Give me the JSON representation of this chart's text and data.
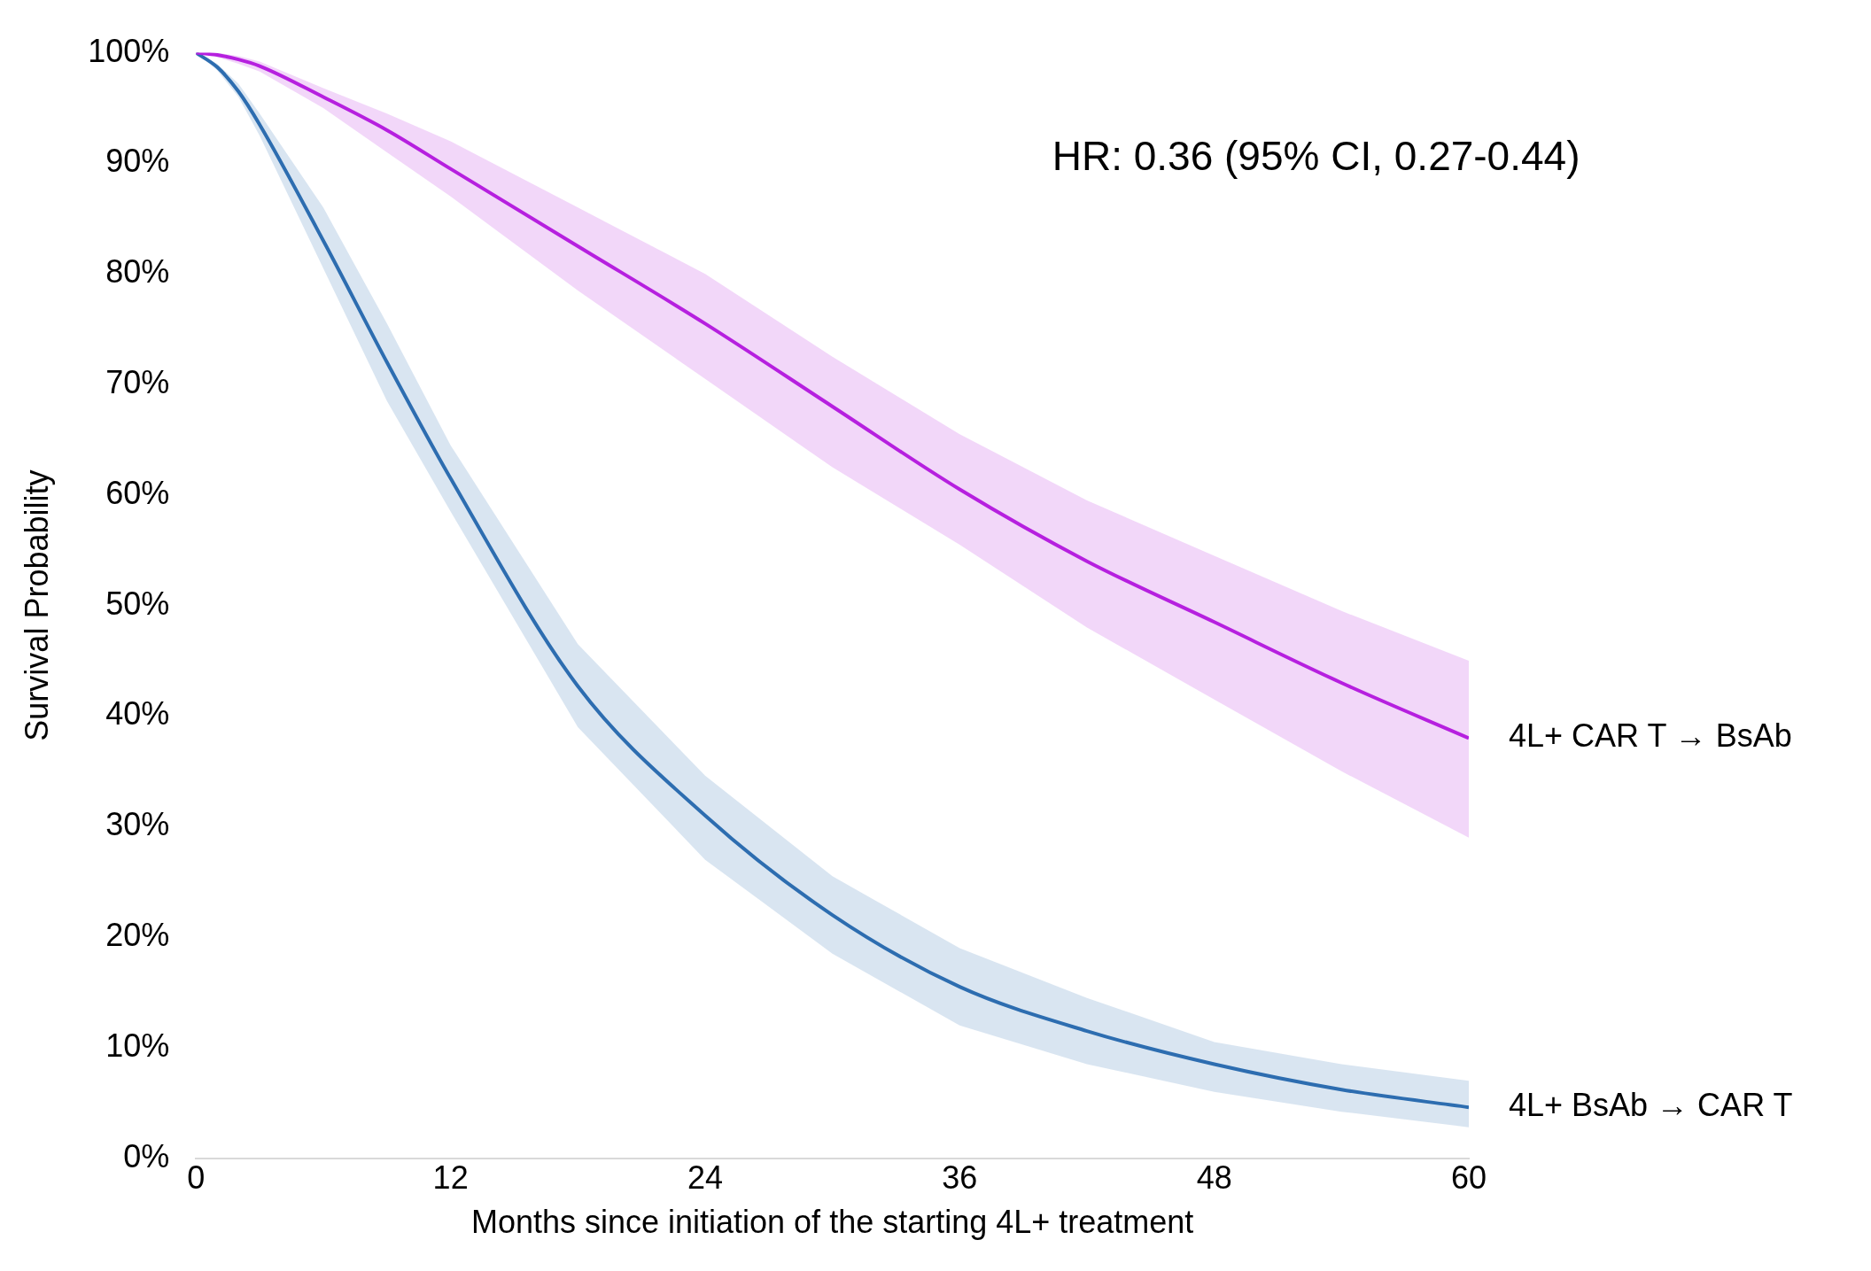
{
  "chart_data": {
    "type": "line",
    "xlabel": "Months since initiation of the starting 4L+ treatment",
    "ylabel": "Survival Probability",
    "annotations": [
      "HR: 0.36 (95% CI, 0.27-0.44)"
    ],
    "x": [
      0,
      1,
      2,
      3,
      6,
      9,
      12,
      18,
      24,
      30,
      36,
      42,
      48,
      54,
      60
    ],
    "series": [
      {
        "name": "4L+ CAR T → BsAb",
        "color": "#b620e0",
        "values": [
          100,
          99.8,
          99.4,
          98.8,
          96,
          93,
          89.5,
          82.5,
          75.5,
          68,
          60.5,
          54,
          48.5,
          43,
          38
        ],
        "lower": [
          100,
          99.6,
          99,
          98.3,
          95,
          91,
          87,
          78.5,
          70.5,
          62.5,
          55.5,
          48,
          41.5,
          35,
          29
        ],
        "upper": [
          100,
          100,
          99.7,
          99.2,
          96.8,
          94.5,
          92,
          86,
          80,
          72.5,
          65.5,
          59.5,
          54.5,
          49.5,
          45
        ]
      },
      {
        "name": "4L+ BsAb → CAR T",
        "color": "#2e6db0",
        "values": [
          100,
          98.7,
          96.5,
          93.5,
          83,
          72,
          61.5,
          42.7,
          31,
          22,
          15.5,
          11.5,
          8.5,
          6.2,
          4.6
        ],
        "lower": [
          100,
          98.4,
          96,
          92.5,
          80.5,
          68.5,
          58.5,
          39,
          27,
          18.5,
          12,
          8.5,
          6,
          4.2,
          2.8
        ],
        "upper": [
          100,
          99,
          97.2,
          94.5,
          86,
          75.5,
          64.5,
          46.5,
          34.6,
          25.5,
          19,
          14.5,
          10.5,
          8.5,
          7
        ]
      }
    ],
    "xlim": [
      0,
      60
    ],
    "xticks": [
      0,
      12,
      24,
      36,
      48,
      60
    ],
    "ylim": [
      0,
      100
    ],
    "yticks": [
      {
        "value": 0,
        "label": "0%"
      },
      {
        "value": 10,
        "label": "10%"
      },
      {
        "value": 20,
        "label": "20%"
      },
      {
        "value": 30,
        "label": "30%"
      },
      {
        "value": 40,
        "label": "40%"
      },
      {
        "value": 50,
        "label": "50%"
      },
      {
        "value": 60,
        "label": "60%"
      },
      {
        "value": 70,
        "label": "70%"
      },
      {
        "value": 80,
        "label": "80%"
      },
      {
        "value": 90,
        "label": "90%"
      },
      {
        "value": 100,
        "label": "100%"
      }
    ],
    "grid": false,
    "legend": false,
    "line_style": "solid",
    "marker": "none"
  }
}
